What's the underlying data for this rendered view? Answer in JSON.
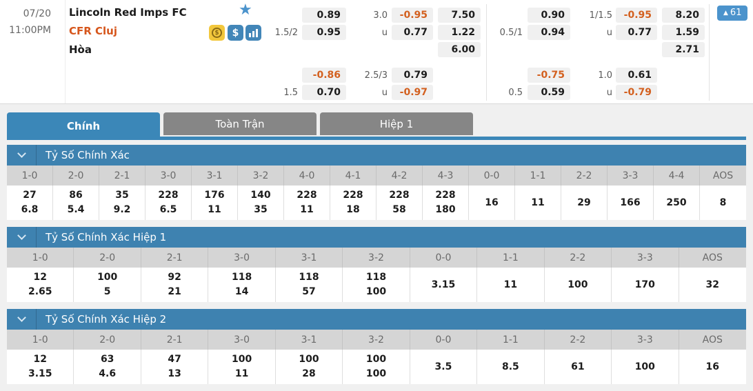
{
  "match": {
    "date": "07/20",
    "time": "11:00PM",
    "home_team": "Lincoln Red Imps FC",
    "away_team": "CFR Cluj",
    "draw_label": "Hòa",
    "badge": {
      "arrow": "▲",
      "count": "61"
    }
  },
  "odds_panels": [
    {
      "name": "panel-left",
      "groups": [
        {
          "rows": [
            {
              "hdp_label": "",
              "hdp": "0.89",
              "ou_label": "3.0",
              "ou": "-0.95",
              "x12": "7.50"
            },
            {
              "hdp_label": "1.5/2",
              "hdp": "0.95",
              "ou_label": "u",
              "ou": "0.77",
              "x12": "1.22"
            },
            {
              "hdp_label": "",
              "hdp": null,
              "ou_label": "",
              "ou": null,
              "x12": "6.00"
            }
          ]
        },
        {
          "rows": [
            {
              "hdp_label": "",
              "hdp": "-0.86",
              "ou_label": "2.5/3",
              "ou": "0.79",
              "x12": null
            },
            {
              "hdp_label": "1.5",
              "hdp": "0.70",
              "ou_label": "u",
              "ou": "-0.97",
              "x12": null
            }
          ]
        }
      ]
    },
    {
      "name": "panel-right",
      "groups": [
        {
          "rows": [
            {
              "hdp_label": "",
              "hdp": "0.90",
              "ou_label": "1/1.5",
              "ou": "-0.95",
              "x12": "8.20"
            },
            {
              "hdp_label": "0.5/1",
              "hdp": "0.94",
              "ou_label": "u",
              "ou": "0.77",
              "x12": "1.59"
            },
            {
              "hdp_label": "",
              "hdp": null,
              "ou_label": "",
              "ou": null,
              "x12": "2.71"
            }
          ]
        },
        {
          "rows": [
            {
              "hdp_label": "",
              "hdp": "-0.75",
              "ou_label": "1.0",
              "ou": "0.61",
              "x12": null
            },
            {
              "hdp_label": "0.5",
              "hdp": "0.59",
              "ou_label": "u",
              "ou": "-0.79",
              "x12": null
            }
          ]
        }
      ]
    }
  ],
  "tabs": [
    {
      "label": "Chính",
      "active": true
    },
    {
      "label": "Toàn Trận",
      "active": false
    },
    {
      "label": "Hiệp 1",
      "active": false
    }
  ],
  "sections": [
    {
      "title": "Tỷ Số Chính Xác",
      "columns": [
        "1-0",
        "2-0",
        "2-1",
        "3-0",
        "3-1",
        "3-2",
        "4-0",
        "4-1",
        "4-2",
        "4-3",
        "0-0",
        "1-1",
        "2-2",
        "3-3",
        "4-4",
        "AOS"
      ],
      "cells": [
        [
          "27",
          "6.8"
        ],
        [
          "86",
          "5.4"
        ],
        [
          "35",
          "9.2"
        ],
        [
          "228",
          "6.5"
        ],
        [
          "176",
          "11"
        ],
        [
          "140",
          "35"
        ],
        [
          "228",
          "11"
        ],
        [
          "228",
          "18"
        ],
        [
          "228",
          "58"
        ],
        [
          "228",
          "180"
        ],
        [
          "16"
        ],
        [
          "11"
        ],
        [
          "29"
        ],
        [
          "166"
        ],
        [
          "250"
        ],
        [
          "8"
        ]
      ]
    },
    {
      "title": "Tỷ Số Chính Xác Hiệp 1",
      "columns": [
        "1-0",
        "2-0",
        "2-1",
        "3-0",
        "3-1",
        "3-2",
        "0-0",
        "1-1",
        "2-2",
        "3-3",
        "AOS"
      ],
      "cells": [
        [
          "12",
          "2.65"
        ],
        [
          "100",
          "5"
        ],
        [
          "92",
          "21"
        ],
        [
          "118",
          "14"
        ],
        [
          "118",
          "57"
        ],
        [
          "118",
          "100"
        ],
        [
          "3.15"
        ],
        [
          "11"
        ],
        [
          "100"
        ],
        [
          "170"
        ],
        [
          "32"
        ]
      ]
    },
    {
      "title": "Tỷ Số Chính Xác Hiệp 2",
      "columns": [
        "1-0",
        "2-0",
        "2-1",
        "3-0",
        "3-1",
        "3-2",
        "0-0",
        "1-1",
        "2-2",
        "3-3",
        "AOS"
      ],
      "cells": [
        [
          "12",
          "3.15"
        ],
        [
          "63",
          "4.6"
        ],
        [
          "47",
          "13"
        ],
        [
          "100",
          "11"
        ],
        [
          "100",
          "28"
        ],
        [
          "100",
          "100"
        ],
        [
          "3.5"
        ],
        [
          "8.5"
        ],
        [
          "61"
        ],
        [
          "100"
        ],
        [
          "16"
        ]
      ]
    }
  ],
  "colors": {
    "accent_blue": "#3b87b8",
    "section_blue": "#3e82b0",
    "badge_blue": "#4b93cc",
    "team_orange": "#d6561c",
    "negative_orange": "#d3601f",
    "tab_gray": "#868686"
  }
}
